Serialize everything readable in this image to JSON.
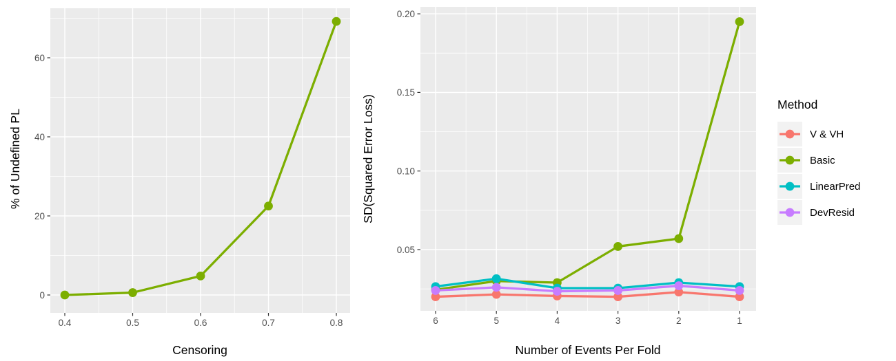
{
  "palette": {
    "page_bg": "#FFFFFF",
    "panel_bg": "#EBEBEB",
    "grid": "#FFFFFF",
    "tick_mark": "#333333",
    "tick_label": "#4D4D4D",
    "axis_title": "#000000",
    "legend_key_bg": "#F2F2F2"
  },
  "legend": {
    "title": "Method",
    "position": "right",
    "items": [
      {
        "label": "V & VH",
        "color": "#F8766D"
      },
      {
        "label": "Basic",
        "color": "#7CAE00"
      },
      {
        "label": "LinearPred",
        "color": "#00BFC4"
      },
      {
        "label": "DevResid",
        "color": "#C77CFF"
      }
    ]
  },
  "chart_data": [
    {
      "type": "line",
      "panel": "left",
      "title": "",
      "xlabel": "Censoring",
      "ylabel": "% of Undefined PL",
      "x": [
        0.4,
        0.5,
        0.6,
        0.7,
        0.8
      ],
      "x_tick_labels": [
        "0.4",
        "0.5",
        "0.6",
        "0.7",
        "0.8"
      ],
      "y_ticks": [
        0,
        20,
        40,
        60
      ],
      "y_tick_labels": [
        "0",
        "20",
        "40",
        "60"
      ],
      "xlim": [
        0.38,
        0.82
      ],
      "ylim": [
        -4.5,
        72.5
      ],
      "grid": "major and minor, white on gray panel",
      "series": [
        {
          "name": "Basic",
          "color": "#7CAE00",
          "values": [
            0,
            0.6,
            4.8,
            22.5,
            69.2
          ]
        }
      ]
    },
    {
      "type": "line",
      "panel": "right",
      "title": "",
      "xlabel": "Number of Events Per Fold",
      "ylabel": "SD(Squared Error Loss)",
      "x": [
        6,
        5,
        4,
        3,
        2,
        1
      ],
      "x_tick_labels": [
        "6",
        "5",
        "4",
        "3",
        "2",
        "1"
      ],
      "x_axis_reversed": true,
      "y_ticks": [
        0.05,
        0.1,
        0.15,
        0.2
      ],
      "y_tick_labels": [
        "0.05",
        "0.10",
        "0.15",
        "0.20"
      ],
      "xlim": [
        6.25,
        0.73
      ],
      "ylim": [
        0.011,
        0.204
      ],
      "grid": "major and minor, white on gray panel",
      "series": [
        {
          "name": "V & VH",
          "color": "#F8766D",
          "values": [
            0.02,
            0.0215,
            0.0205,
            0.02,
            0.023,
            0.02
          ]
        },
        {
          "name": "Basic",
          "color": "#7CAE00",
          "values": [
            0.0245,
            0.03,
            0.029,
            0.052,
            0.057,
            0.195
          ]
        },
        {
          "name": "LinearPred",
          "color": "#00BFC4",
          "values": [
            0.0265,
            0.0315,
            0.0255,
            0.0255,
            0.029,
            0.0265
          ]
        },
        {
          "name": "DevResid",
          "color": "#C77CFF",
          "values": [
            0.024,
            0.026,
            0.0235,
            0.024,
            0.027,
            0.024
          ]
        }
      ]
    }
  ]
}
